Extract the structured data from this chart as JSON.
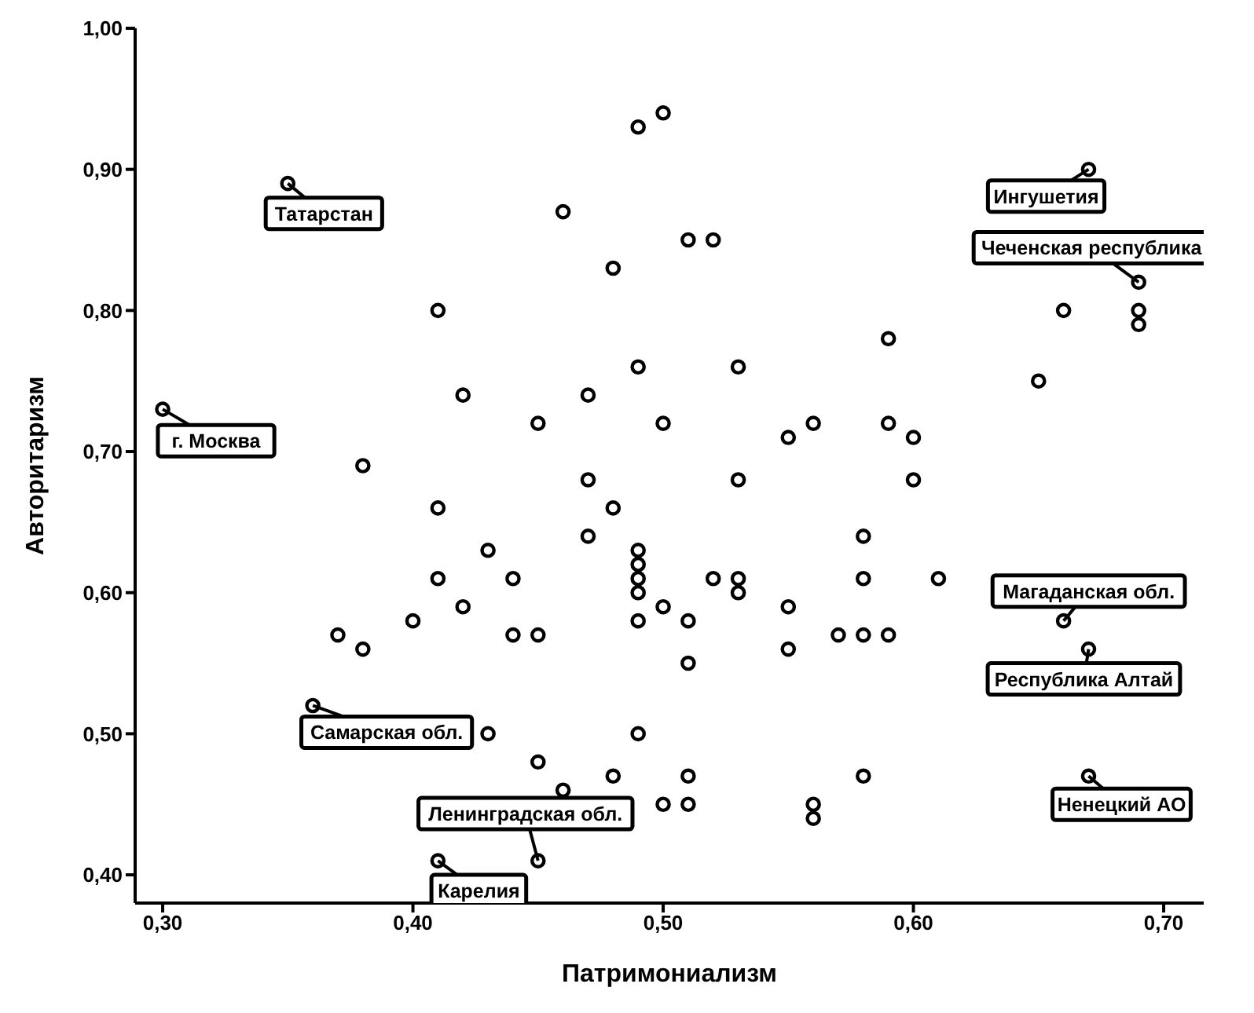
{
  "chart_data": {
    "type": "scatter",
    "xlabel": "Патримониализм",
    "ylabel": "Авторитаризм",
    "color": "#000000",
    "marker": "circle",
    "grid": false,
    "xlim": [
      0.289,
      0.716
    ],
    "ylim": [
      0.38,
      1.0
    ],
    "xticks": [
      {
        "value": 0.3,
        "label": "0,30"
      },
      {
        "value": 0.4,
        "label": "0,40"
      },
      {
        "value": 0.5,
        "label": "0,50"
      },
      {
        "value": 0.6,
        "label": "0,60"
      },
      {
        "value": 0.7,
        "label": "0,70"
      }
    ],
    "yticks": [
      {
        "value": 0.4,
        "label": "0,40"
      },
      {
        "value": 0.5,
        "label": "0,50"
      },
      {
        "value": 0.6,
        "label": "0,60"
      },
      {
        "value": 0.7,
        "label": "0,70"
      },
      {
        "value": 0.8,
        "label": "0,80"
      },
      {
        "value": 0.9,
        "label": "0,90"
      },
      {
        "value": 1.0,
        "label": "1,00"
      }
    ],
    "x": [
      0.49,
      0.5,
      0.35,
      0.46,
      0.51,
      0.52,
      0.48,
      0.67,
      0.69,
      0.41,
      0.66,
      0.69,
      0.69,
      0.49,
      0.53,
      0.59,
      0.65,
      0.42,
      0.47,
      0.3,
      0.45,
      0.5,
      0.55,
      0.56,
      0.59,
      0.6,
      0.38,
      0.47,
      0.53,
      0.6,
      0.41,
      0.48,
      0.47,
      0.58,
      0.43,
      0.49,
      0.49,
      0.49,
      0.49,
      0.41,
      0.44,
      0.52,
      0.53,
      0.53,
      0.58,
      0.61,
      0.42,
      0.5,
      0.55,
      0.4,
      0.49,
      0.51,
      0.37,
      0.38,
      0.44,
      0.45,
      0.57,
      0.58,
      0.59,
      0.66,
      0.67,
      0.51,
      0.55,
      0.36,
      0.43,
      0.49,
      0.45,
      0.48,
      0.51,
      0.58,
      0.67,
      0.46,
      0.5,
      0.51,
      0.56,
      0.56,
      0.41,
      0.45
    ],
    "values": [
      0.93,
      0.94,
      0.89,
      0.87,
      0.85,
      0.85,
      0.83,
      0.9,
      0.82,
      0.8,
      0.8,
      0.8,
      0.79,
      0.76,
      0.76,
      0.78,
      0.75,
      0.74,
      0.74,
      0.73,
      0.72,
      0.72,
      0.71,
      0.72,
      0.72,
      0.71,
      0.69,
      0.68,
      0.68,
      0.68,
      0.66,
      0.66,
      0.64,
      0.64,
      0.63,
      0.63,
      0.62,
      0.61,
      0.6,
      0.61,
      0.61,
      0.61,
      0.61,
      0.6,
      0.61,
      0.61,
      0.59,
      0.59,
      0.59,
      0.58,
      0.58,
      0.58,
      0.57,
      0.56,
      0.57,
      0.57,
      0.57,
      0.57,
      0.57,
      0.58,
      0.56,
      0.55,
      0.56,
      0.52,
      0.5,
      0.5,
      0.48,
      0.47,
      0.47,
      0.47,
      0.47,
      0.46,
      0.45,
      0.45,
      0.45,
      0.44,
      0.41,
      0.41
    ],
    "annotations": [
      {
        "text": "Татарстан",
        "x": 0.35,
        "y": 0.89
      },
      {
        "text": "г. Москва",
        "x": 0.3,
        "y": 0.73
      },
      {
        "text": "Ингушетия",
        "x": 0.67,
        "y": 0.9
      },
      {
        "text": "Чеченская республика",
        "x": 0.69,
        "y": 0.82
      },
      {
        "text": "Магаданская обл.",
        "x": 0.66,
        "y": 0.58
      },
      {
        "text": "Республика Алтай",
        "x": 0.67,
        "y": 0.56
      },
      {
        "text": "Ненецкий АО",
        "x": 0.67,
        "y": 0.47
      },
      {
        "text": "Самарская обл.",
        "x": 0.36,
        "y": 0.52
      },
      {
        "text": "Ленинградская обл.",
        "x": 0.45,
        "y": 0.41
      },
      {
        "text": "Карелия",
        "x": 0.41,
        "y": 0.41
      }
    ]
  }
}
